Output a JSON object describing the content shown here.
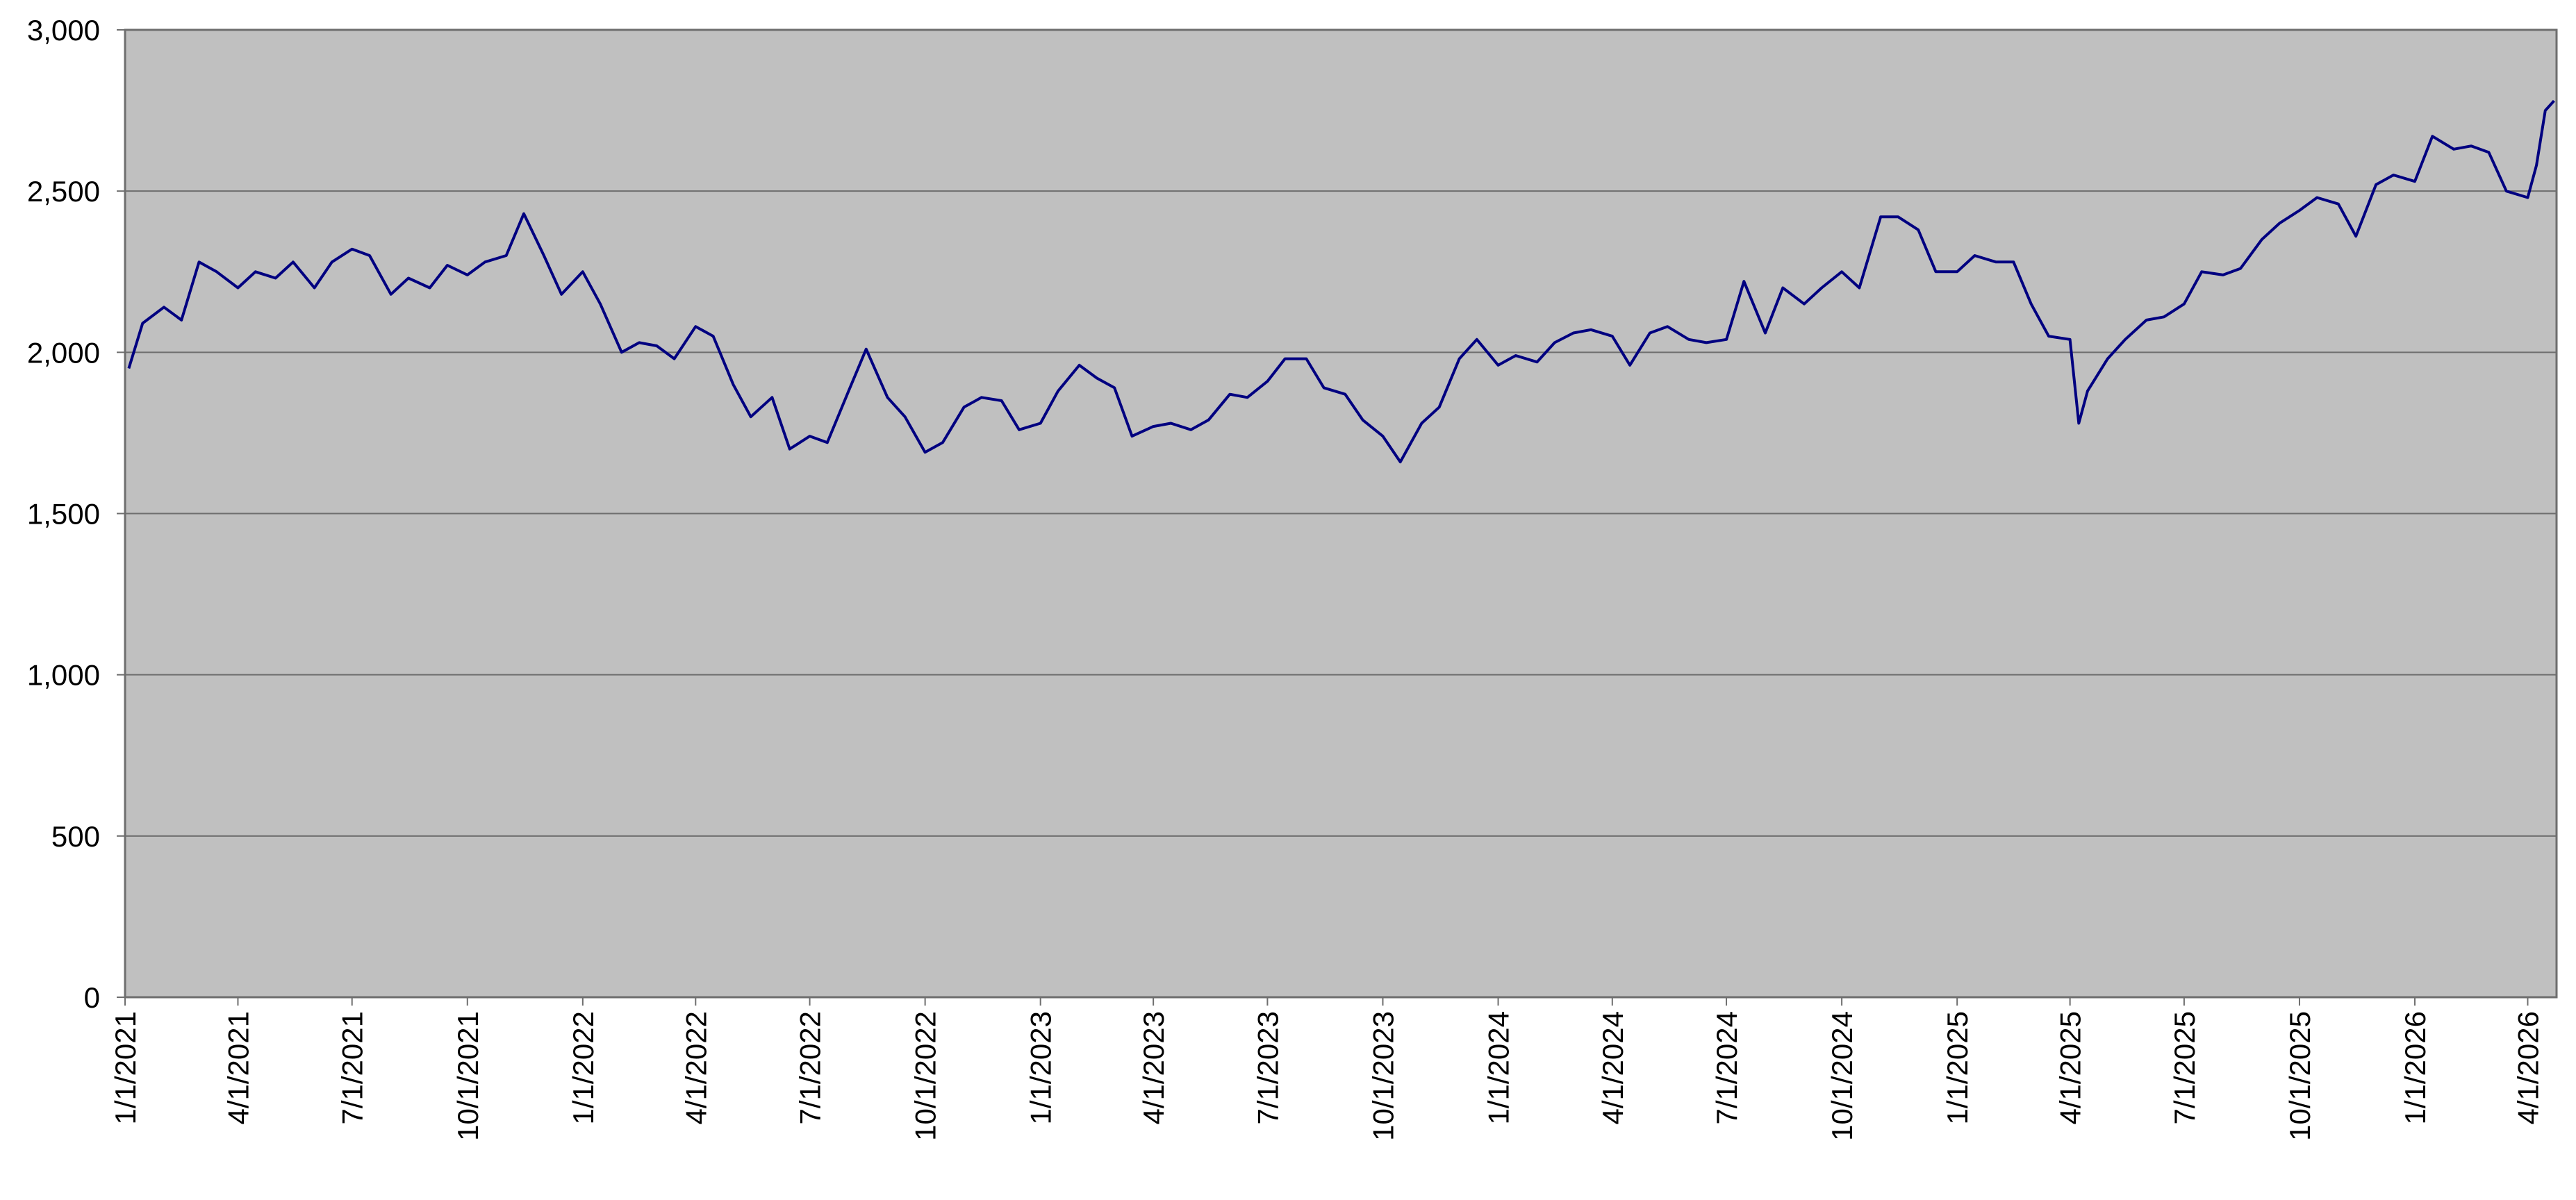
{
  "chart_data": {
    "type": "line",
    "color": "#000080",
    "background": "#c0c0c0",
    "grid": true,
    "x": [
      "1/4/2021",
      "1/15/2021",
      "2/1/2021",
      "2/15/2021",
      "3/1/2021",
      "3/15/2021",
      "4/1/2021",
      "4/15/2021",
      "5/1/2021",
      "5/15/2021",
      "6/1/2021",
      "6/15/2021",
      "7/1/2021",
      "7/15/2021",
      "8/1/2021",
      "8/15/2021",
      "9/1/2021",
      "9/15/2021",
      "10/1/2021",
      "10/15/2021",
      "11/1/2021",
      "11/15/2021",
      "12/1/2021",
      "12/15/2021",
      "1/1/2022",
      "1/15/2022",
      "2/1/2022",
      "2/15/2022",
      "3/1/2022",
      "3/15/2022",
      "4/1/2022",
      "4/15/2022",
      "5/1/2022",
      "5/15/2022",
      "6/1/2022",
      "6/15/2022",
      "7/1/2022",
      "7/15/2022",
      "8/1/2022",
      "8/15/2022",
      "9/1/2022",
      "9/15/2022",
      "10/1/2022",
      "10/15/2022",
      "11/1/2022",
      "11/15/2022",
      "12/1/2022",
      "12/15/2022",
      "1/1/2023",
      "1/15/2023",
      "2/1/2023",
      "2/15/2023",
      "3/1/2023",
      "3/15/2023",
      "4/1/2023",
      "4/15/2023",
      "5/1/2023",
      "5/15/2023",
      "6/1/2023",
      "6/15/2023",
      "7/1/2023",
      "7/15/2023",
      "8/1/2023",
      "8/15/2023",
      "9/1/2023",
      "9/15/2023",
      "10/1/2023",
      "10/15/2023",
      "11/1/2023",
      "11/15/2023",
      "12/1/2023",
      "12/15/2023",
      "1/1/2024",
      "1/15/2024",
      "2/1/2024",
      "2/15/2024",
      "3/1/2024",
      "3/15/2024",
      "4/1/2024",
      "4/15/2024",
      "5/1/2024",
      "5/15/2024",
      "6/1/2024",
      "6/15/2024",
      "7/1/2024",
      "7/15/2024",
      "8/1/2024",
      "8/15/2024",
      "9/1/2024",
      "9/15/2024",
      "10/1/2024",
      "10/15/2024",
      "11/1/2024",
      "11/15/2024",
      "12/1/2024",
      "12/15/2024",
      "1/1/2025",
      "1/15/2025",
      "2/1/2025",
      "2/15/2025",
      "3/1/2025",
      "3/15/2025",
      "4/1/2025",
      "4/8/2025",
      "4/15/2025",
      "5/1/2025",
      "5/15/2025",
      "6/1/2025",
      "6/15/2025",
      "7/1/2025",
      "7/15/2025",
      "8/1/2025",
      "8/15/2025",
      "9/1/2025",
      "9/15/2025",
      "10/1/2025",
      "10/15/2025",
      "11/1/2025",
      "11/15/2025",
      "12/1/2025",
      "12/15/2025",
      "1/1/2026",
      "1/15/2026",
      "2/1/2026",
      "2/15/2026",
      "3/1/2026",
      "3/15/2026",
      "4/1/2026",
      "4/8/2026",
      "4/15/2026",
      "4/22/2026"
    ],
    "values": [
      1950,
      2090,
      2140,
      2100,
      2280,
      2250,
      2200,
      2250,
      2230,
      2280,
      2200,
      2280,
      2320,
      2300,
      2180,
      2230,
      2200,
      2270,
      2240,
      2280,
      2300,
      2430,
      2300,
      2180,
      2250,
      2150,
      2000,
      2030,
      2020,
      1980,
      2080,
      2050,
      1900,
      1800,
      1860,
      1700,
      1740,
      1720,
      1880,
      2010,
      1860,
      1800,
      1690,
      1720,
      1830,
      1860,
      1850,
      1760,
      1780,
      1880,
      1960,
      1920,
      1890,
      1740,
      1770,
      1780,
      1760,
      1790,
      1870,
      1860,
      1910,
      1980,
      1980,
      1890,
      1870,
      1790,
      1740,
      1660,
      1780,
      1830,
      1980,
      2040,
      1960,
      1990,
      1970,
      2030,
      2060,
      2070,
      2050,
      1960,
      2060,
      2080,
      2040,
      2030,
      2040,
      2220,
      2060,
      2200,
      2150,
      2200,
      2250,
      2200,
      2420,
      2420,
      2380,
      2250,
      2250,
      2300,
      2280,
      2280,
      2150,
      2050,
      2040,
      1780,
      1880,
      1980,
      2040,
      2100,
      2110,
      2150,
      2250,
      2240,
      2260,
      2350,
      2400,
      2440,
      2480,
      2460,
      2360,
      2520,
      2550,
      2530,
      2670,
      2630,
      2640,
      2620,
      2500,
      2480,
      2580,
      2750,
      2780
    ],
    "xlim": [
      "1/1/2021",
      "4/24/2026"
    ],
    "xticks": [
      "1/1/2021",
      "4/1/2021",
      "7/1/2021",
      "10/1/2021",
      "1/1/2022",
      "4/1/2022",
      "7/1/2022",
      "10/1/2022",
      "1/1/2023",
      "4/1/2023",
      "7/1/2023",
      "10/1/2023",
      "1/1/2024",
      "4/1/2024",
      "7/1/2024",
      "10/1/2024",
      "1/1/2025",
      "4/1/2025",
      "7/1/2025",
      "10/1/2025",
      "1/1/2026",
      "4/1/2026"
    ],
    "ylim": [
      0,
      3000
    ],
    "yticks": [
      0,
      {
        "value": 500,
        "label": "500"
      },
      {
        "value": 1000,
        "label": "1,000"
      },
      {
        "value": 1500,
        "label": "1,500"
      },
      {
        "value": 2000,
        "label": "2,000"
      },
      {
        "value": 2500,
        "label": "2,500"
      },
      {
        "value": 3000,
        "label": "3,000"
      }
    ]
  }
}
